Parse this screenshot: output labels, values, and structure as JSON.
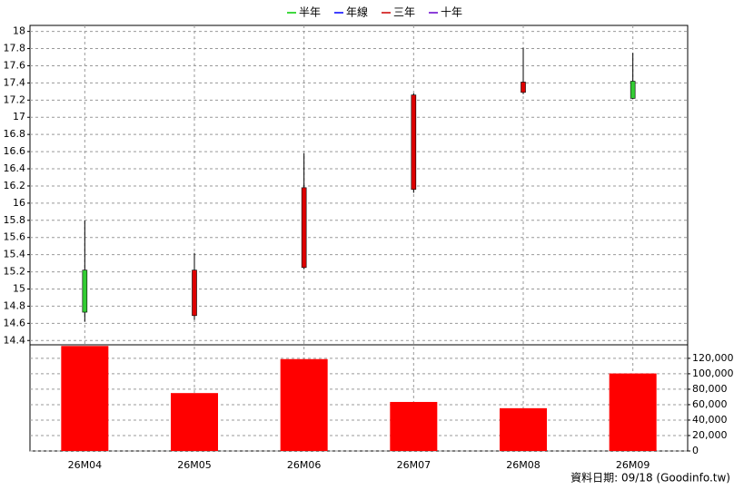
{
  "chart_data": [
    {
      "type": "candlestick",
      "legend": [
        {
          "name": "半年",
          "color": "#00cc00"
        },
        {
          "name": "年線",
          "color": "#0000ff"
        },
        {
          "name": "三年",
          "color": "#cc0000"
        },
        {
          "name": "十年",
          "color": "#6600cc"
        }
      ],
      "open": [
        15.22,
        14.69,
        15.25,
        16.16,
        17.29,
        17.42
      ],
      "high": [
        15.8,
        15.42,
        16.58,
        17.28,
        17.81,
        17.75
      ],
      "low": [
        14.62,
        14.64,
        15.23,
        16.12,
        17.27,
        17.21
      ],
      "close": [
        14.73,
        15.22,
        16.18,
        17.26,
        17.41,
        17.22
      ],
      "up_color": "#dd0000",
      "down_color": "#33cc33",
      "ylim": [
        14.35,
        18.07
      ],
      "yticks": [
        14.4,
        14.6,
        14.8,
        15,
        15.2,
        15.4,
        15.6,
        15.8,
        16,
        16.2,
        16.4,
        16.6,
        16.8,
        17,
        17.2,
        17.4,
        17.6,
        17.8,
        18
      ],
      "grid": true
    },
    {
      "type": "bar",
      "categories": [
        "26M04",
        "26M05",
        "26M06",
        "26M07",
        "26M08",
        "26M09"
      ],
      "values": [
        136000,
        75000,
        119000,
        63500,
        55400,
        100400
      ],
      "color": "#ff0000",
      "ylim": [
        0,
        137500
      ],
      "yticks": [
        0,
        {
          "value": 20000,
          "label": "20,000"
        },
        {
          "value": 40000,
          "label": "40,000"
        },
        {
          "value": 60000,
          "label": "60,000"
        },
        {
          "value": 80000,
          "label": "80,000"
        },
        {
          "value": 100000,
          "label": "100,000"
        },
        {
          "value": 120000,
          "label": "120,000"
        }
      ],
      "grid": true
    }
  ],
  "footer": "資料日期: 09/18  (Goodinfo.tw)"
}
